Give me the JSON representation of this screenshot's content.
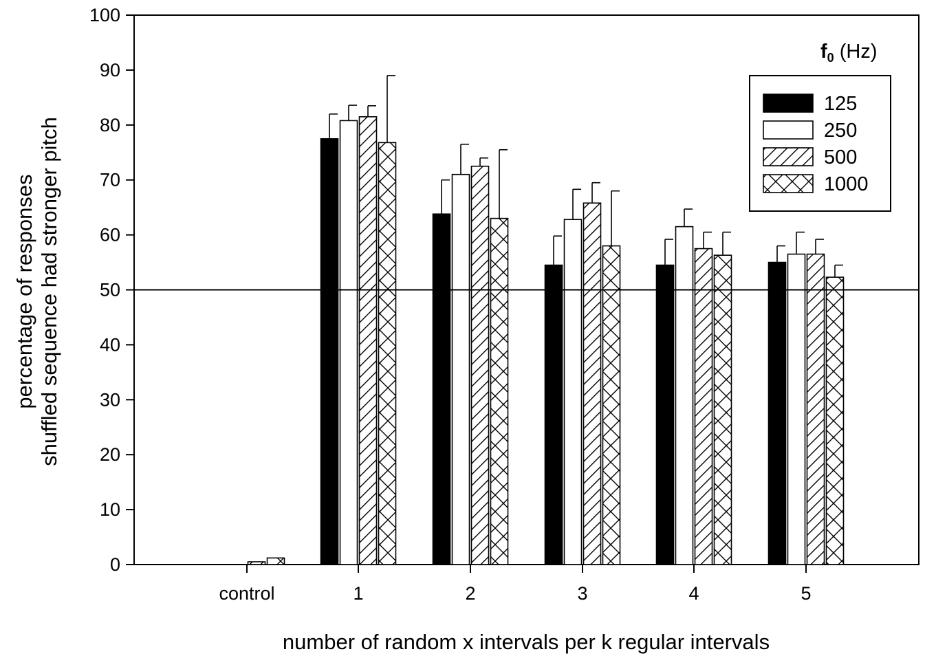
{
  "chart_data": {
    "type": "bar",
    "title": "",
    "xlabel": "number of random x intervals per k regular intervals",
    "ylabel_lines": [
      "percentage of responses",
      "shuffled sequence had stronger pitch"
    ],
    "categories": [
      "control",
      "1",
      "2",
      "3",
      "4",
      "5"
    ],
    "ylim": [
      0,
      100
    ],
    "yticks": [
      0,
      10,
      20,
      30,
      40,
      50,
      60,
      70,
      80,
      90,
      100
    ],
    "reference_line": 50,
    "legend": {
      "title_main": "f",
      "title_sub": "0",
      "title_unit": " (Hz)",
      "position": "top-right"
    },
    "series": [
      {
        "name": "125",
        "pattern": "solid",
        "values": [
          0,
          77.5,
          63.8,
          54.5,
          54.5,
          55.0
        ],
        "errors": [
          0,
          4.5,
          6.2,
          5.3,
          4.7,
          3.0
        ]
      },
      {
        "name": "250",
        "pattern": "open",
        "values": [
          0,
          80.8,
          71.0,
          62.8,
          61.5,
          56.5
        ],
        "errors": [
          0,
          2.8,
          5.5,
          5.5,
          3.2,
          4.0
        ]
      },
      {
        "name": "500",
        "pattern": "hatch",
        "values": [
          0.5,
          81.5,
          72.5,
          65.8,
          57.5,
          56.5
        ],
        "errors": [
          0,
          2.0,
          1.5,
          3.7,
          3.0,
          2.7
        ]
      },
      {
        "name": "1000",
        "pattern": "cross",
        "values": [
          1.2,
          76.8,
          63.0,
          58.0,
          56.3,
          52.3
        ],
        "errors": [
          0,
          12.2,
          12.5,
          10.0,
          4.2,
          2.2
        ]
      }
    ]
  }
}
